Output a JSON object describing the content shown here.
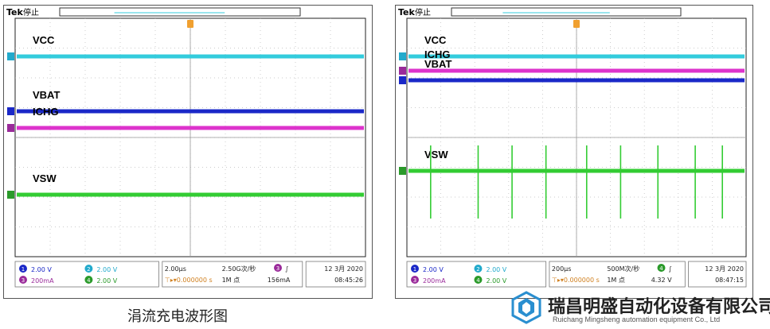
{
  "chart_data": [
    {
      "type": "line",
      "header": {
        "brand": "Tek",
        "status": "停止"
      },
      "series": [
        {
          "name": "VCC",
          "channel": "2",
          "color": "#33ccdd",
          "level": 0.84
        },
        {
          "name": "VBAT",
          "channel": "1",
          "color": "#1a28c8",
          "level": 0.61
        },
        {
          "name": "ICHG",
          "channel": "3",
          "color": "#dd33cc",
          "level": 0.54
        },
        {
          "name": "VSW",
          "channel": "4",
          "color": "#33cc33",
          "level": 0.26,
          "spikes": false
        }
      ],
      "status_bar": {
        "ch1": "2.00 V",
        "ch2": "2.00 V",
        "ch3": "200mA",
        "ch4": "2.00 V",
        "timebase": "2.00µs",
        "sample_rate": "2.50G次/秒",
        "trigger_pos": "0.000000 s",
        "record": "1M 点",
        "trig_ch": "3",
        "trig_slope": "∫",
        "trig_level": "156mA",
        "date": "12 3月 2020",
        "time": "08:45:26"
      }
    },
    {
      "type": "line",
      "header": {
        "brand": "Tek",
        "status": "停止"
      },
      "series": [
        {
          "name": "VCC",
          "channel": "2",
          "color": "#33ccdd",
          "level": 0.84
        },
        {
          "name": "ICHG",
          "channel": "3",
          "color": "#dd33cc",
          "level": 0.78
        },
        {
          "name": "VBAT",
          "channel": "1",
          "color": "#1a28c8",
          "level": 0.74
        },
        {
          "name": "VSW",
          "channel": "4",
          "color": "#33cc33",
          "level": 0.36,
          "spikes": true,
          "spike_x": [
            0.07,
            0.21,
            0.31,
            0.41,
            0.53,
            0.63,
            0.74,
            0.85,
            0.93
          ]
        }
      ],
      "status_bar": {
        "ch1": "2.00 V",
        "ch2": "2.00 V",
        "ch3": "200mA",
        "ch4": "2.00 V",
        "timebase": "200µs",
        "sample_rate": "500M次/秒",
        "trigger_pos": "0.000000 s",
        "record": "1M 点",
        "trig_ch": "4",
        "trig_slope": "∫",
        "trig_level": "4.32 V",
        "date": "12 3月 2020",
        "time": "08:47:15"
      }
    }
  ],
  "caption": "涓流充电波形图",
  "company": {
    "name_cn": "瑞昌明盛自动化设备有限公司",
    "name_en": "Ruichang Mingsheng automation equipment Co., Ltd"
  }
}
